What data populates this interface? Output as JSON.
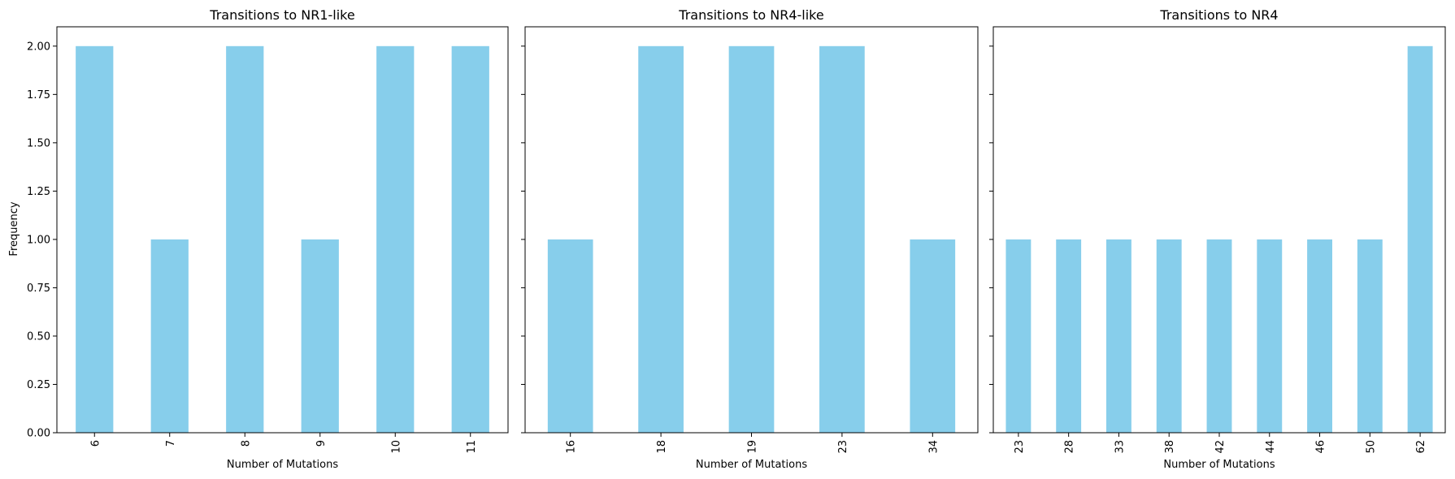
{
  "chart_data": [
    {
      "type": "bar",
      "title": "Transitions to NR1-like",
      "xlabel": "Number of Mutations",
      "ylabel": "Frequency",
      "categories": [
        "6",
        "7",
        "8",
        "9",
        "10",
        "11"
      ],
      "values": [
        2,
        1,
        2,
        1,
        2,
        2
      ],
      "ylim": [
        0,
        2.1
      ],
      "yticks": [
        "0.00",
        "0.25",
        "0.50",
        "0.75",
        "1.00",
        "1.25",
        "1.50",
        "1.75",
        "2.00"
      ],
      "color": "#87CEEB",
      "grid": false
    },
    {
      "type": "bar",
      "title": "Transitions to NR4-like",
      "xlabel": "Number of Mutations",
      "ylabel": "",
      "categories": [
        "16",
        "18",
        "19",
        "23",
        "34"
      ],
      "values": [
        1,
        2,
        2,
        2,
        1
      ],
      "ylim": [
        0,
        2.1
      ],
      "color": "#87CEEB",
      "grid": false
    },
    {
      "type": "bar",
      "title": "Transitions to NR4",
      "xlabel": "Number of Mutations",
      "ylabel": "",
      "categories": [
        "23",
        "28",
        "33",
        "38",
        "42",
        "44",
        "46",
        "50",
        "62"
      ],
      "values": [
        1,
        1,
        1,
        1,
        1,
        1,
        1,
        1,
        2
      ],
      "ylim": [
        0,
        2.1
      ],
      "color": "#87CEEB",
      "grid": false
    }
  ]
}
